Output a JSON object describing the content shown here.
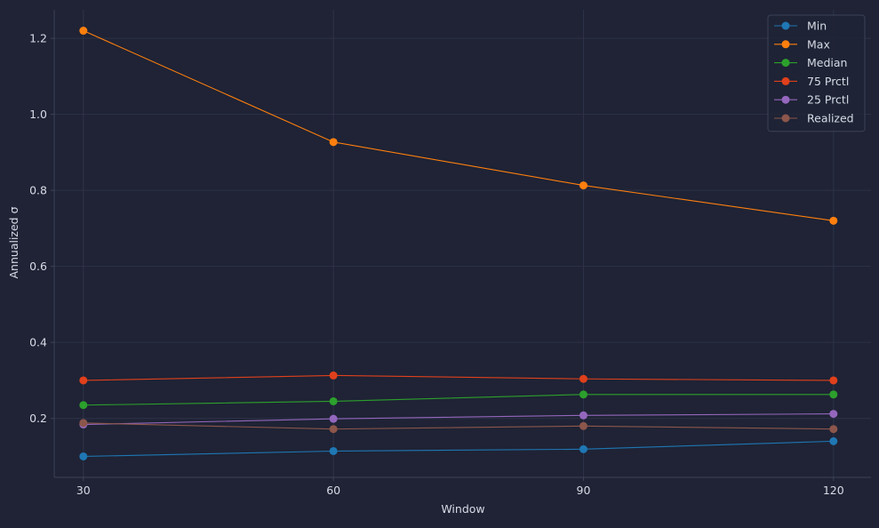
{
  "chart_data": {
    "type": "line",
    "title": "",
    "xlabel": "Window",
    "ylabel": "Annualized σ",
    "x": [
      30,
      60,
      90,
      120
    ],
    "xlim": [
      26.5,
      124.5
    ],
    "ylim": [
      0.045,
      1.275
    ],
    "xticks": [
      30,
      60,
      90,
      120
    ],
    "yticks": [
      0.2,
      0.4,
      0.6,
      0.8,
      1.0,
      1.2
    ],
    "ytick_labels": [
      "0.2",
      "0.4",
      "0.6",
      "0.8",
      "1.0",
      "1.2"
    ],
    "grid": true,
    "legend_position": "top-right",
    "series": [
      {
        "name": "Min",
        "color": "#1f77b4",
        "values": [
          0.1,
          0.114,
          0.119,
          0.14
        ]
      },
      {
        "name": "Max",
        "color": "#ff7f0e",
        "values": [
          1.22,
          0.927,
          0.813,
          0.72
        ]
      },
      {
        "name": "Median",
        "color": "#2ca02c",
        "values": [
          0.235,
          0.245,
          0.263,
          0.263
        ]
      },
      {
        "name": "75 Prctl",
        "color": "#e0401c",
        "values": [
          0.3,
          0.313,
          0.304,
          0.3
        ]
      },
      {
        "name": "25 Prctl",
        "color": "#9467bd",
        "values": [
          0.184,
          0.199,
          0.208,
          0.212
        ]
      },
      {
        "name": "Realized",
        "color": "#8c564b",
        "values": [
          0.188,
          0.172,
          0.18,
          0.172
        ]
      }
    ]
  },
  "colors": {
    "background": "#1f2335",
    "grid": "#2e3348",
    "axis": "#3d4258",
    "text": "#d7dbe6",
    "legend_bg": "#1f2335",
    "legend_border": "#3d4258"
  }
}
